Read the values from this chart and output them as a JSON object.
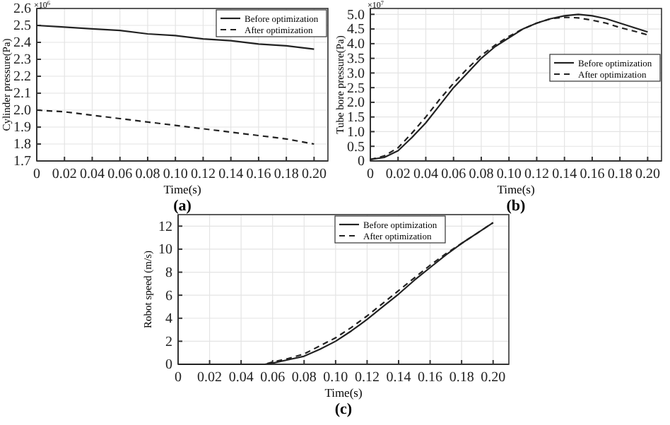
{
  "chart_data": [
    {
      "type": "line",
      "xlabel": "Time(s)",
      "ylabel": "Cylinder pressure(Pa)",
      "annotations": [
        "×10$^{6}$",
        "(a)"
      ],
      "xlim": [
        0,
        0.21
      ],
      "xticks": [
        {
          "value": 0,
          "label": "0"
        },
        {
          "value": 0.02,
          "label": "0.02"
        },
        {
          "value": 0.04,
          "label": "0.04"
        },
        {
          "value": 0.06,
          "label": "0.06"
        },
        {
          "value": 0.08,
          "label": "0.08"
        },
        {
          "value": 0.1,
          "label": "0.10"
        },
        {
          "value": 0.12,
          "label": "0.12"
        },
        {
          "value": 0.14,
          "label": "0.14"
        },
        {
          "value": 0.16,
          "label": "0.16"
        },
        {
          "value": 0.18,
          "label": "0.18"
        },
        {
          "value": 0.2,
          "label": "0.20"
        }
      ],
      "ylim": [
        1.7,
        2.6
      ],
      "yticks": [
        {
          "value": 1.7,
          "label": "1.7"
        },
        {
          "value": 1.8,
          "label": "1.8"
        },
        {
          "value": 1.9,
          "label": "1.9"
        },
        {
          "value": 2.0,
          "label": "2.0"
        },
        {
          "value": 2.1,
          "label": "2.1"
        },
        {
          "value": 2.2,
          "label": "2.2"
        },
        {
          "value": 2.3,
          "label": "2.3"
        },
        {
          "value": 2.4,
          "label": "2.4"
        },
        {
          "value": 2.5,
          "label": "2.5"
        },
        {
          "value": 2.6,
          "label": "2.6"
        }
      ],
      "grid": true,
      "legend": "top right",
      "series": [
        {
          "name": "Before optimization",
          "color": "#222222",
          "line_style": "solid",
          "x": [
            0,
            0.02,
            0.04,
            0.06,
            0.08,
            0.1,
            0.12,
            0.14,
            0.16,
            0.18,
            0.2
          ],
          "values": [
            2.5,
            2.49,
            2.48,
            2.47,
            2.45,
            2.44,
            2.42,
            2.41,
            2.39,
            2.38,
            2.36
          ]
        },
        {
          "name": "After optimization",
          "color": "#222222",
          "line_style": "dashed",
          "x": [
            0,
            0.02,
            0.04,
            0.06,
            0.08,
            0.1,
            0.12,
            0.14,
            0.16,
            0.18,
            0.2
          ],
          "values": [
            2.0,
            1.99,
            1.97,
            1.95,
            1.93,
            1.91,
            1.89,
            1.87,
            1.85,
            1.83,
            1.8
          ]
        }
      ]
    },
    {
      "type": "line",
      "xlabel": "Time(s)",
      "ylabel": "Tube bore pressure(Pa)",
      "annotations": [
        "×10$^{7}$",
        "(b)"
      ],
      "xlim": [
        0,
        0.21
      ],
      "xticks": [
        {
          "value": 0,
          "label": "0"
        },
        {
          "value": 0.02,
          "label": "0.02"
        },
        {
          "value": 0.04,
          "label": "0.04"
        },
        {
          "value": 0.06,
          "label": "0.06"
        },
        {
          "value": 0.08,
          "label": "0.08"
        },
        {
          "value": 0.1,
          "label": "0.10"
        },
        {
          "value": 0.12,
          "label": "0.12"
        },
        {
          "value": 0.14,
          "label": "0.14"
        },
        {
          "value": 0.16,
          "label": "0.16"
        },
        {
          "value": 0.18,
          "label": "0.18"
        },
        {
          "value": 0.2,
          "label": "0.20"
        }
      ],
      "ylim": [
        0,
        5.2
      ],
      "yticks": [
        {
          "value": 0,
          "label": "0"
        },
        {
          "value": 0.5,
          "label": "0.5"
        },
        {
          "value": 1,
          "label": "1.0"
        },
        {
          "value": 1.5,
          "label": "1.5"
        },
        {
          "value": 2,
          "label": "2.0"
        },
        {
          "value": 2.5,
          "label": "2.5"
        },
        {
          "value": 3,
          "label": "3.0"
        },
        {
          "value": 3.5,
          "label": "3.5"
        },
        {
          "value": 4,
          "label": "4.0"
        },
        {
          "value": 4.5,
          "label": "4.5"
        },
        {
          "value": 5,
          "label": "5.0"
        }
      ],
      "grid": true,
      "legend": "right",
      "series": [
        {
          "name": "Before optimization",
          "color": "#222222",
          "line_style": "solid",
          "x": [
            0,
            0.01,
            0.02,
            0.03,
            0.04,
            0.05,
            0.06,
            0.07,
            0.08,
            0.09,
            0.1,
            0.11,
            0.12,
            0.13,
            0.14,
            0.15,
            0.16,
            0.17,
            0.18,
            0.19,
            0.2
          ],
          "values": [
            0.05,
            0.12,
            0.35,
            0.8,
            1.3,
            1.9,
            2.5,
            3.0,
            3.5,
            3.9,
            4.2,
            4.5,
            4.7,
            4.85,
            4.95,
            5.0,
            4.95,
            4.85,
            4.7,
            4.55,
            4.4
          ]
        },
        {
          "name": "After optimization",
          "color": "#222222",
          "line_style": "dashed",
          "x": [
            0,
            0.01,
            0.02,
            0.03,
            0.04,
            0.05,
            0.06,
            0.07,
            0.08,
            0.09,
            0.1,
            0.11,
            0.12,
            0.13,
            0.14,
            0.15,
            0.16,
            0.17,
            0.18,
            0.19,
            0.2
          ],
          "values": [
            0.05,
            0.17,
            0.45,
            0.95,
            1.5,
            2.1,
            2.65,
            3.15,
            3.6,
            3.95,
            4.25,
            4.5,
            4.7,
            4.85,
            4.9,
            4.88,
            4.8,
            4.7,
            4.55,
            4.43,
            4.3
          ]
        }
      ]
    },
    {
      "type": "line",
      "xlabel": "Time(s)",
      "ylabel": "Robot speed (m/s)",
      "annotations": [
        "(c)"
      ],
      "xlim": [
        0,
        0.21
      ],
      "xticks": [
        {
          "value": 0,
          "label": "0"
        },
        {
          "value": 0.02,
          "label": "0.02"
        },
        {
          "value": 0.04,
          "label": "0.04"
        },
        {
          "value": 0.06,
          "label": "0.06"
        },
        {
          "value": 0.08,
          "label": "0.08"
        },
        {
          "value": 0.1,
          "label": "0.10"
        },
        {
          "value": 0.12,
          "label": "0.12"
        },
        {
          "value": 0.14,
          "label": "0.14"
        },
        {
          "value": 0.16,
          "label": "0.16"
        },
        {
          "value": 0.18,
          "label": "0.18"
        },
        {
          "value": 0.2,
          "label": "0.20"
        }
      ],
      "ylim": [
        0,
        13
      ],
      "yticks": [
        0,
        2,
        4,
        6,
        8,
        10,
        12
      ],
      "grid": true,
      "legend": "top right",
      "series": [
        {
          "name": "Before optimization",
          "color": "#222222",
          "line_style": "solid",
          "x": [
            0,
            0.055,
            0.06,
            0.07,
            0.08,
            0.09,
            0.1,
            0.11,
            0.12,
            0.13,
            0.14,
            0.15,
            0.16,
            0.17,
            0.18,
            0.19,
            0.2
          ],
          "values": [
            0,
            0,
            0.1,
            0.4,
            0.7,
            1.3,
            2.0,
            2.9,
            3.9,
            5.0,
            6.1,
            7.3,
            8.4,
            9.5,
            10.5,
            11.4,
            12.3
          ]
        },
        {
          "name": "After optimization",
          "color": "#222222",
          "line_style": "dashed",
          "x": [
            0,
            0.055,
            0.06,
            0.07,
            0.08,
            0.09,
            0.1,
            0.11,
            0.12,
            0.13,
            0.14,
            0.15,
            0.16,
            0.17,
            0.18,
            0.19,
            0.2
          ],
          "values": [
            0,
            0,
            0.2,
            0.5,
            0.9,
            1.6,
            2.3,
            3.2,
            4.2,
            5.3,
            6.4,
            7.5,
            8.6,
            9.6,
            10.5,
            11.4,
            12.3
          ]
        }
      ]
    }
  ]
}
